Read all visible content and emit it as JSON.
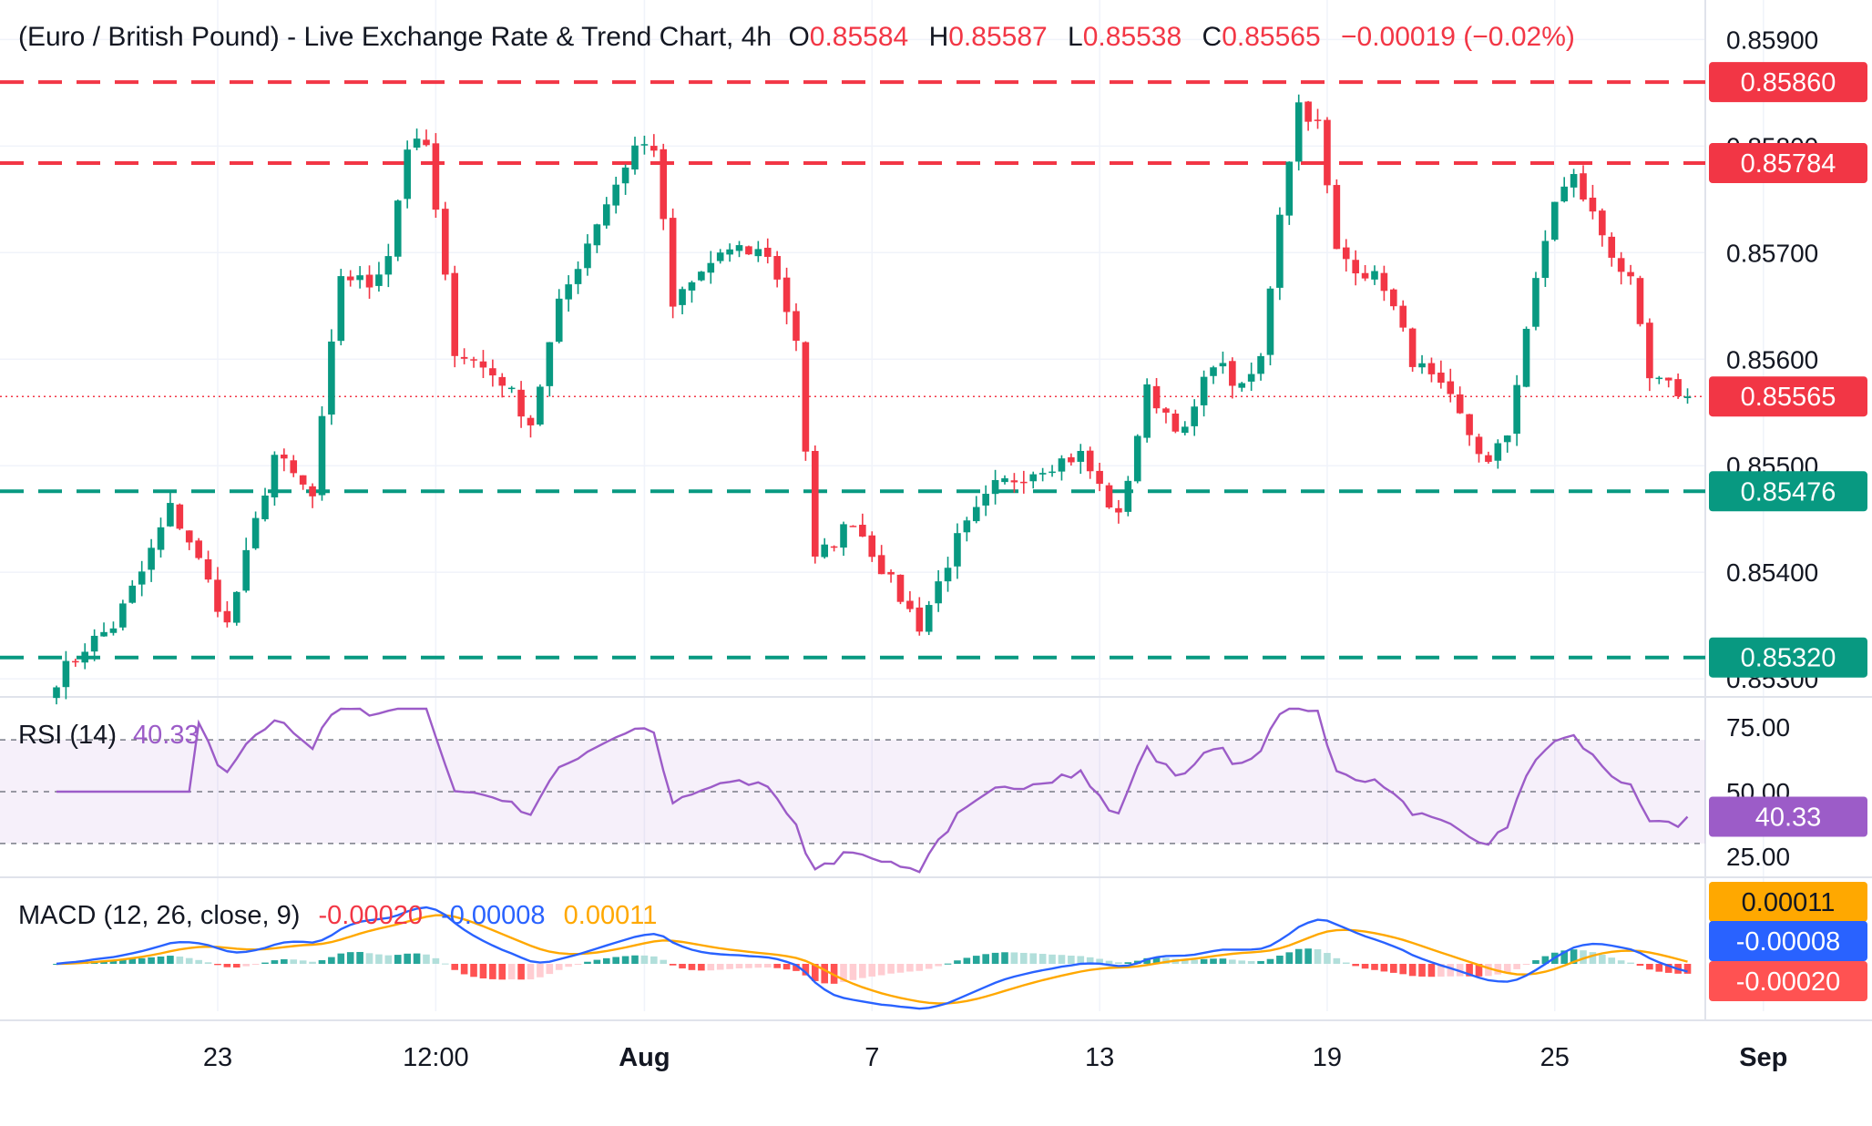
{
  "header": {
    "title": "(Euro / British Pound) - Live Exchange Rate & Trend Chart, 4h",
    "o_label": "O",
    "o_value": "0.85584",
    "h_label": "H",
    "h_value": "0.85587",
    "l_label": "L",
    "l_value": "0.85538",
    "c_label": "C",
    "c_value": "0.85565",
    "change": "−0.00019 (−0.02%)"
  },
  "colors": {
    "up": "#089981",
    "down": "#F23645",
    "rsi": "#9C5CC8",
    "macd": "#2962FF",
    "signal": "#FFA800",
    "grid": "#F0F3FA",
    "text": "#131722",
    "axis_text": "#131722"
  },
  "chart_data": [
    {
      "type": "candlestick",
      "name": "price",
      "y_ticks": [
        "0.85900",
        "0.85800",
        "0.85700",
        "0.85600",
        "0.85500",
        "0.85400",
        "0.85300"
      ],
      "y_tick_values": [
        0.859,
        0.858,
        0.857,
        0.856,
        0.855,
        0.854,
        0.853
      ],
      "ylim": [
        0.85283,
        0.8592
      ],
      "x_labels": [
        "23",
        "12:00",
        "Aug",
        "7",
        "13",
        "19",
        "25",
        "Sep"
      ],
      "last_price": 0.85565,
      "last_price_label": "0.85565",
      "levels": [
        {
          "value": 0.8586,
          "label": "0.85860",
          "kind": "resistance"
        },
        {
          "value": 0.85784,
          "label": "0.85784",
          "kind": "resistance"
        },
        {
          "value": 0.85476,
          "label": "0.85476",
          "kind": "support"
        },
        {
          "value": 0.8532,
          "label": "0.85320",
          "kind": "support"
        }
      ],
      "waypoints": [
        [
          0,
          0.853
        ],
        [
          3,
          0.8533
        ],
        [
          6,
          0.8535
        ],
        [
          9,
          0.854
        ],
        [
          12,
          0.8546
        ],
        [
          14,
          0.8543
        ],
        [
          18,
          0.8535
        ],
        [
          23,
          0.8551
        ],
        [
          27,
          0.8547
        ],
        [
          30,
          0.8568
        ],
        [
          33,
          0.8567
        ],
        [
          35,
          0.857
        ],
        [
          37,
          0.858
        ],
        [
          39,
          0.858
        ],
        [
          42,
          0.8561
        ],
        [
          47,
          0.8558
        ],
        [
          50,
          0.8554
        ],
        [
          53,
          0.8565
        ],
        [
          57,
          0.8573
        ],
        [
          61,
          0.858
        ],
        [
          63,
          0.858
        ],
        [
          65,
          0.8565
        ],
        [
          70,
          0.857
        ],
        [
          75,
          0.857
        ],
        [
          78,
          0.8562
        ],
        [
          80,
          0.8541
        ],
        [
          84,
          0.8545
        ],
        [
          88,
          0.8539
        ],
        [
          91,
          0.8535
        ],
        [
          95,
          0.8543
        ],
        [
          99,
          0.8548
        ],
        [
          104,
          0.855
        ],
        [
          108,
          0.8551
        ],
        [
          112,
          0.8545
        ],
        [
          115,
          0.8557
        ],
        [
          119,
          0.8553
        ],
        [
          122,
          0.856
        ],
        [
          125,
          0.8557
        ],
        [
          127,
          0.856
        ],
        [
          129,
          0.8574
        ],
        [
          131,
          0.8584
        ],
        [
          133,
          0.8582
        ],
        [
          135,
          0.857
        ],
        [
          140,
          0.8567
        ],
        [
          143,
          0.856
        ],
        [
          147,
          0.8556
        ],
        [
          151,
          0.855
        ],
        [
          153,
          0.8553
        ],
        [
          155,
          0.8563
        ],
        [
          158,
          0.8575
        ],
        [
          160,
          0.8577
        ],
        [
          164,
          0.857
        ],
        [
          166,
          0.8567
        ],
        [
          168,
          0.8558
        ],
        [
          171,
          0.8557
        ],
        [
          172,
          0.85565
        ]
      ],
      "x_label_bars": [
        17,
        40,
        62,
        86,
        110,
        134,
        158,
        180
      ]
    },
    {
      "type": "line",
      "name": "rsi",
      "label": "RSI (14)",
      "value_label": "40.33",
      "y_ticks": [
        "75.00",
        "50.00",
        "25.00"
      ],
      "y_tick_values": [
        75,
        50,
        25
      ],
      "bands": [
        70,
        50,
        30
      ],
      "ylim": [
        18,
        82
      ]
    },
    {
      "type": "line",
      "name": "macd",
      "label": "MACD (12, 26, close, 9)",
      "hist_label": "-0.00020",
      "macd_label": "-0.00008",
      "signal_label": "0.00011",
      "series": [
        {
          "name": "-0.00008",
          "role": "macd"
        },
        {
          "name": "0.00011",
          "role": "signal"
        },
        {
          "name": "-0.00020",
          "role": "histogram"
        }
      ]
    }
  ]
}
